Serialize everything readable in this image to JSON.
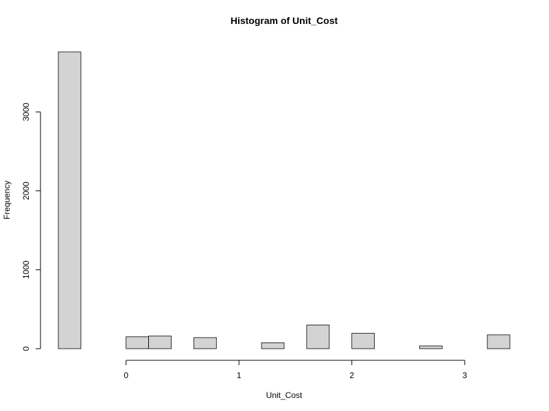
{
  "chart_data": {
    "type": "bar",
    "title": "Histogram of Unit_Cost",
    "xlabel": "Unit_Cost",
    "ylabel": "Frequency",
    "bins": [
      {
        "start": -0.8,
        "end": -0.6,
        "count": 0
      },
      {
        "start": -0.6,
        "end": -0.4,
        "count": 3760
      },
      {
        "start": -0.4,
        "end": -0.2,
        "count": 0
      },
      {
        "start": -0.2,
        "end": 0.0,
        "count": 0
      },
      {
        "start": 0.0,
        "end": 0.2,
        "count": 150
      },
      {
        "start": 0.2,
        "end": 0.4,
        "count": 160
      },
      {
        "start": 0.4,
        "end": 0.6,
        "count": 0
      },
      {
        "start": 0.6,
        "end": 0.8,
        "count": 140
      },
      {
        "start": 0.8,
        "end": 1.0,
        "count": 0
      },
      {
        "start": 1.0,
        "end": 1.2,
        "count": 0
      },
      {
        "start": 1.2,
        "end": 1.4,
        "count": 75
      },
      {
        "start": 1.4,
        "end": 1.6,
        "count": 0
      },
      {
        "start": 1.6,
        "end": 1.8,
        "count": 300
      },
      {
        "start": 1.8,
        "end": 2.0,
        "count": 0
      },
      {
        "start": 2.0,
        "end": 2.2,
        "count": 195
      },
      {
        "start": 2.2,
        "end": 2.4,
        "count": 0
      },
      {
        "start": 2.4,
        "end": 2.6,
        "count": 0
      },
      {
        "start": 2.6,
        "end": 2.8,
        "count": 35
      },
      {
        "start": 2.8,
        "end": 3.0,
        "count": 0
      },
      {
        "start": 3.0,
        "end": 3.2,
        "count": 0
      },
      {
        "start": 3.2,
        "end": 3.4,
        "count": 175
      }
    ],
    "xticks": [
      0,
      1,
      2,
      3
    ],
    "yticks": [
      0,
      1000,
      2000,
      3000
    ],
    "xlim": [
      -0.8,
      3.4
    ],
    "ylim": [
      0,
      3760
    ],
    "bar_fill": "#d3d3d3",
    "grid": false
  }
}
